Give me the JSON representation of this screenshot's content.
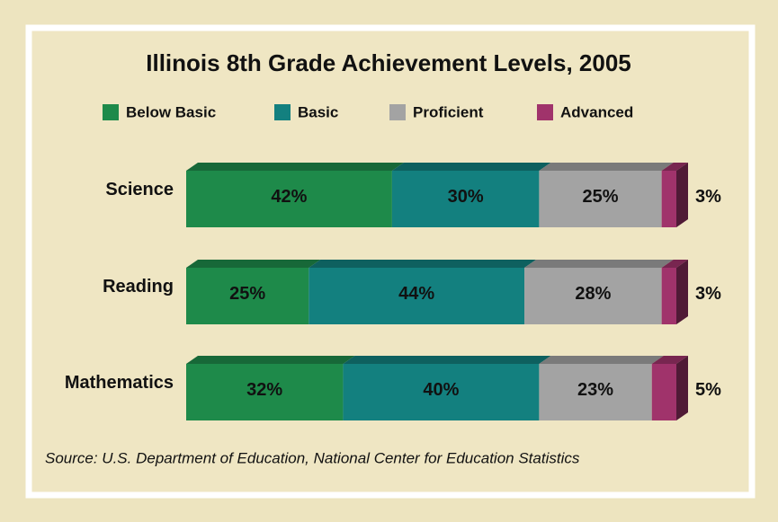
{
  "chart_data": {
    "type": "stacked-bar-horizontal",
    "title": "Illinois 8th Grade Achievement Levels, 2005",
    "categories": [
      "Science",
      "Reading",
      "Mathematics"
    ],
    "series": [
      {
        "name": "Below Basic",
        "color": "#1e8a4a",
        "values": [
          42,
          25,
          32
        ],
        "value_labels": [
          "42%",
          "25%",
          "32%"
        ]
      },
      {
        "name": "Basic",
        "color": "#13807f",
        "values": [
          30,
          44,
          40
        ],
        "value_labels": [
          "30%",
          "44%",
          "40%"
        ]
      },
      {
        "name": "Proficient",
        "color": "#a3a3a3",
        "values": [
          25,
          28,
          23
        ],
        "value_labels": [
          "25%",
          "28%",
          "23%"
        ]
      },
      {
        "name": "Advanced",
        "color": "#a0336b",
        "values": [
          3,
          3,
          5
        ],
        "value_labels": [
          "3%",
          "3%",
          "5%"
        ]
      }
    ],
    "source": "Source:  U.S. Department of Education, National Center for Education Statistics"
  }
}
